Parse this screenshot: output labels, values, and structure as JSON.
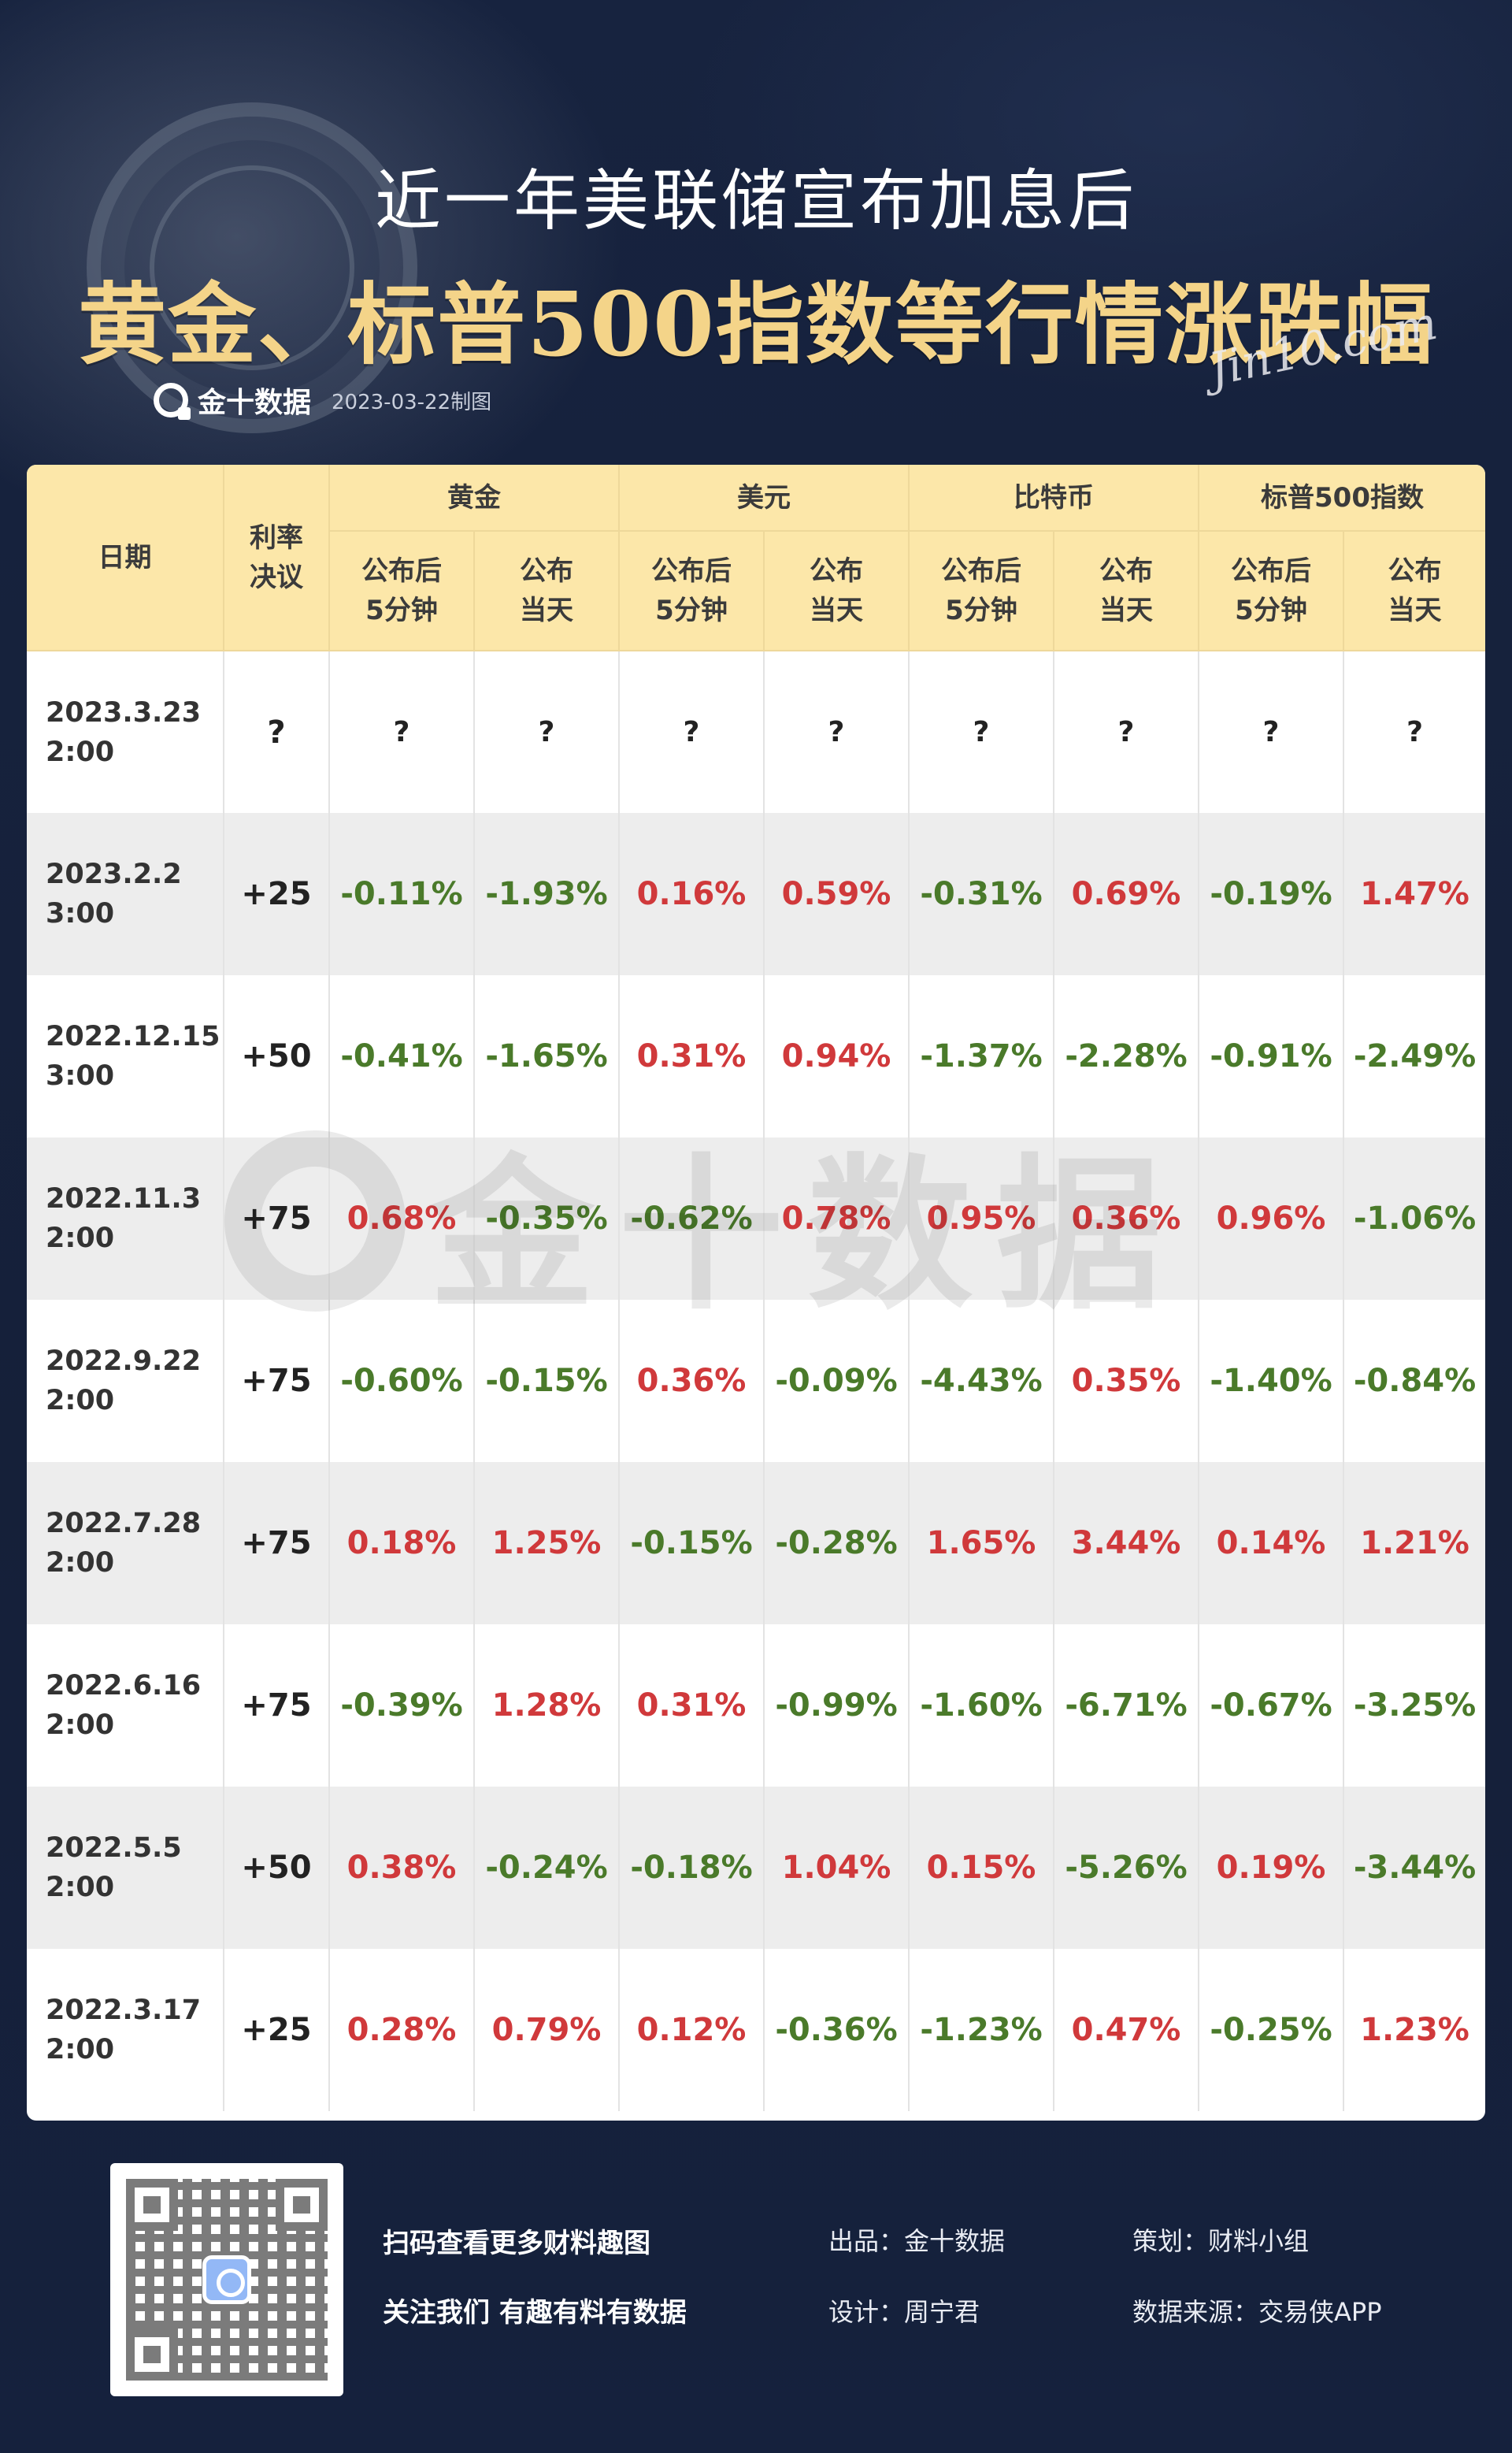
{
  "header": {
    "title_line1": "近一年美联储宣布加息后",
    "title_line2": "黄金、标普500指数等行情涨跌幅",
    "signature": "Jin10.com",
    "brand_name": "金十数据",
    "date_note": "2023-03-22制图"
  },
  "table": {
    "headers": {
      "date": "日期",
      "rate": "利率\n决议",
      "groups": [
        "黄金",
        "美元",
        "比特币",
        "标普500指数"
      ],
      "sub_after5": "公布后\n5分钟",
      "sub_day": "公布\n当天"
    },
    "rows": [
      {
        "date": "2023.3.23\n2:00",
        "rate": "?",
        "values": [
          "?",
          "?",
          "?",
          "?",
          "?",
          "?",
          "?",
          "?"
        ]
      },
      {
        "date": "2023.2.2\n3:00",
        "rate": "+25",
        "values": [
          "-0.11%",
          "-1.93%",
          "0.16%",
          "0.59%",
          "-0.31%",
          "0.69%",
          "-0.19%",
          "1.47%"
        ]
      },
      {
        "date": "2022.12.15\n3:00",
        "rate": "+50",
        "values": [
          "-0.41%",
          "-1.65%",
          "0.31%",
          "0.94%",
          "-1.37%",
          "-2.28%",
          "-0.91%",
          "-2.49%"
        ]
      },
      {
        "date": "2022.11.3\n2:00",
        "rate": "+75",
        "values": [
          "0.68%",
          "-0.35%",
          "-0.62%",
          "0.78%",
          "0.95%",
          "0.36%",
          "0.96%",
          "-1.06%"
        ]
      },
      {
        "date": "2022.9.22\n2:00",
        "rate": "+75",
        "values": [
          "-0.60%",
          "-0.15%",
          "0.36%",
          "-0.09%",
          "-4.43%",
          "0.35%",
          "-1.40%",
          "-0.84%"
        ]
      },
      {
        "date": "2022.7.28\n2:00",
        "rate": "+75",
        "values": [
          "0.18%",
          "1.25%",
          "-0.15%",
          "-0.28%",
          "1.65%",
          "3.44%",
          "0.14%",
          "1.21%"
        ]
      },
      {
        "date": "2022.6.16\n2:00",
        "rate": "+75",
        "values": [
          "-0.39%",
          "1.28%",
          "0.31%",
          "-0.99%",
          "-1.60%",
          "-6.71%",
          "-0.67%",
          "-3.25%"
        ]
      },
      {
        "date": "2022.5.5\n2:00",
        "rate": "+50",
        "values": [
          "0.38%",
          "-0.24%",
          "-0.18%",
          "1.04%",
          "0.15%",
          "-5.26%",
          "0.19%",
          "-3.44%"
        ]
      },
      {
        "date": "2022.3.17\n2:00",
        "rate": "+25",
        "values": [
          "0.28%",
          "0.79%",
          "0.12%",
          "-0.36%",
          "-1.23%",
          "0.47%",
          "-0.25%",
          "1.23%"
        ]
      }
    ]
  },
  "watermark": "金十数据",
  "footer": {
    "scan_text": "扫码查看更多财料趣图",
    "follow_text": "关注我们 有趣有料有数据",
    "producer": "出品：金十数据",
    "designer": "设计：周宁君",
    "planner": "策划：财料小组",
    "source": "数据来源：交易侠APP"
  },
  "colors": {
    "positive": "#d0393b",
    "negative": "#4a7a2a",
    "header_bg": "#fce7a9",
    "title_gold": "#f4d489",
    "page_bg": "#15213d"
  }
}
